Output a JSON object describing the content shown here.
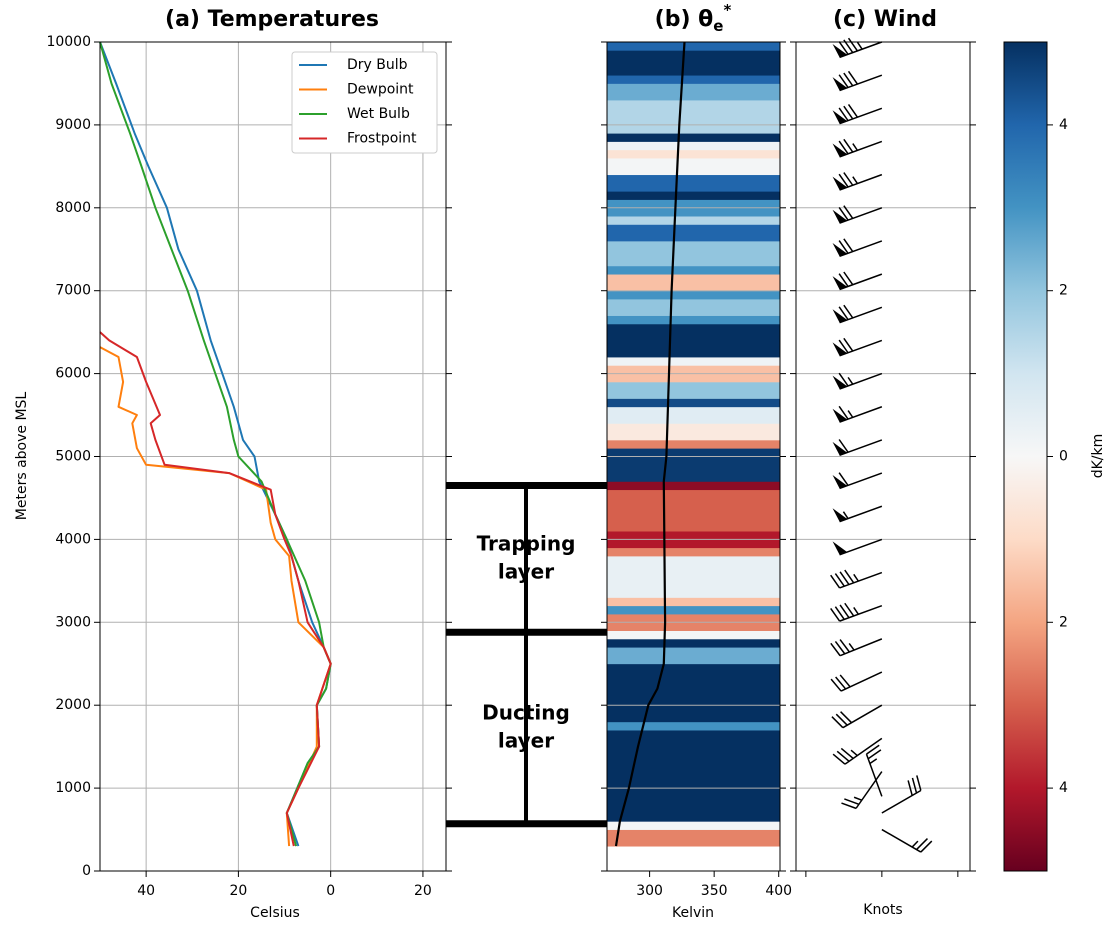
{
  "chart_data": [
    {
      "type": "line",
      "title": "(a) Temperatures",
      "xlabel": "Celsius",
      "ylabel": "Meters above MSL",
      "xlim": [
        -50,
        25
      ],
      "xticks": [
        {
          "value": -40,
          "label": "40"
        },
        {
          "value": -20,
          "label": "20"
        },
        0,
        20
      ],
      "ylim": [
        0,
        10000
      ],
      "yticks": [
        0,
        1000,
        2000,
        3000,
        4000,
        5000,
        6000,
        7000,
        8000,
        9000,
        10000
      ],
      "grid": true,
      "legend": "upper right",
      "series": [
        {
          "name": "Dry Bulb",
          "color": "#1f77b4",
          "x": [
            -7,
            -9.5,
            -8,
            -5,
            -2.5,
            -3,
            -1,
            0,
            -1.5,
            -4,
            -7,
            -9.5,
            -12,
            -15.5,
            -16.5,
            -19,
            -21,
            -23.5,
            -26,
            -29,
            -33,
            -35.5,
            -39.5,
            -42.5,
            -46.5,
            -50
          ],
          "y": [
            300,
            700,
            900,
            1300,
            1500,
            2000,
            2200,
            2500,
            2700,
            3000,
            3500,
            4000,
            4300,
            4700,
            5000,
            5200,
            5600,
            6000,
            6400,
            7000,
            7500,
            8000,
            8500,
            8900,
            9500,
            10000
          ]
        },
        {
          "name": "Dewpoint",
          "color": "#ff7f0e",
          "x": [
            -9,
            -9.5,
            -7,
            -3,
            -3,
            0,
            -1.5,
            -7,
            -8.5,
            -9,
            -12,
            -13,
            -14,
            -22,
            -40,
            -42,
            -43,
            -42,
            -46,
            -45,
            -46,
            -50
          ],
          "y": [
            300,
            700,
            1000,
            1500,
            2000,
            2500,
            2700,
            3000,
            3500,
            3800,
            4000,
            4200,
            4600,
            4800,
            4900,
            5100,
            5400,
            5500,
            5600,
            5900,
            6200,
            6320
          ]
        },
        {
          "name": "Wet Bulb",
          "color": "#2ca02c",
          "x": [
            -7.5,
            -9.5,
            -8,
            -5,
            -2.5,
            -3,
            -1,
            0,
            -1.5,
            -2.5,
            -5.5,
            -9.5,
            -12,
            -15,
            -20,
            -21,
            -22.5,
            -25,
            -27.5,
            -31,
            -34.5,
            -38,
            -41,
            -43.5,
            -47.5,
            -50
          ],
          "y": [
            300,
            700,
            900,
            1300,
            1500,
            2000,
            2200,
            2500,
            2700,
            3000,
            3500,
            4000,
            4300,
            4700,
            5000,
            5200,
            5600,
            6000,
            6400,
            7000,
            7500,
            8000,
            8500,
            8900,
            9500,
            10000
          ]
        },
        {
          "name": "Frostpoint",
          "color": "#d62728",
          "x": [
            -8,
            -9.5,
            -7,
            -2.5,
            -3,
            0,
            -1.5,
            -5,
            -7,
            -8.5,
            -10,
            -12,
            -13,
            -22,
            -36,
            -38,
            -39,
            -37,
            -40,
            -42,
            -48,
            -50
          ],
          "y": [
            300,
            700,
            1000,
            1500,
            2000,
            2500,
            2700,
            3000,
            3500,
            3800,
            4000,
            4300,
            4600,
            4800,
            4900,
            5200,
            5400,
            5500,
            5900,
            6200,
            6400,
            6500
          ]
        }
      ]
    },
    {
      "type": "heatmap",
      "title": {
        "text": "(b) θ",
        "sub": "e",
        "sup": "*"
      },
      "xlabel": "Kelvin",
      "xlim": [
        267,
        401
      ],
      "xticks": [
        300,
        350,
        400
      ],
      "ylim": [
        0,
        10000
      ],
      "y_edges": [
        300,
        500,
        600,
        1700,
        1800,
        2500,
        2700,
        2800,
        2900,
        3100,
        3200,
        3300,
        3800,
        3900,
        4100,
        4600,
        4700,
        5100,
        5200,
        5400,
        5600,
        5700,
        5900,
        6100,
        6200,
        6600,
        6700,
        6900,
        7000,
        7200,
        7300,
        7600,
        7800,
        7900,
        8100,
        8200,
        8400,
        8600,
        8700,
        8800,
        8900,
        9300,
        9500,
        9600,
        9900,
        10000
      ],
      "values": [
        -2.5,
        0.1,
        5,
        3,
        5,
        2.5,
        5,
        0.1,
        -2.5,
        3,
        -1.5,
        0.4,
        -2.5,
        -4,
        -3,
        -4.5,
        4.8,
        -2.5,
        -0.5,
        0.6,
        4.5,
        2,
        -1.5,
        0.2,
        5,
        3,
        2,
        3,
        -1.5,
        3,
        2,
        4,
        1.5,
        3,
        5,
        4,
        0.1,
        -0.7,
        0.2,
        5,
        1.5,
        2.5,
        4,
        5,
        4
      ],
      "colormap": "RdBu",
      "clim": [
        -5,
        5
      ],
      "cticks": [
        {
          "value": -4,
          "label": "4"
        },
        {
          "value": -2,
          "label": "2"
        },
        0,
        2,
        4
      ],
      "clabel": "dK/km",
      "line": {
        "color": "#000000",
        "x": [
          274,
          277,
          284,
          291,
          299,
          306,
          311,
          312,
          311,
          313,
          315,
          317,
          320,
          323,
          327
        ],
        "y": [
          300,
          600,
          1000,
          1500,
          2000,
          2200,
          2500,
          3000,
          4700,
          5000,
          6000,
          7000,
          8000,
          9000,
          10000
        ]
      },
      "layer_boundaries": [
        570,
        2880,
        4650
      ],
      "layers": [
        {
          "label": [
            "Trapping",
            "layer"
          ]
        },
        {
          "label": [
            "Ducting",
            "layer"
          ]
        }
      ]
    },
    {
      "type": "barbs",
      "title": "(c) Wind",
      "xlabel": "Knots",
      "xlim": [
        -113,
        116
      ],
      "xticks": [
        -100,
        0,
        100
      ],
      "ylim": [
        0,
        10000
      ],
      "heights": [
        10000,
        9600,
        9200,
        8800,
        8400,
        8000,
        7600,
        7200,
        6800,
        6400,
        6000,
        5600,
        5200,
        4800,
        4400,
        4000,
        3600,
        3200,
        2800,
        2400,
        2000,
        1600,
        1200,
        900,
        700,
        500
      ],
      "speed": [
        85,
        80,
        80,
        75,
        75,
        70,
        70,
        70,
        70,
        70,
        65,
        65,
        60,
        60,
        55,
        50,
        45,
        45,
        35,
        30,
        30,
        35,
        25,
        25,
        30,
        25
      ],
      "direction": [
        250,
        250,
        250,
        250,
        250,
        250,
        250,
        250,
        250,
        250,
        250,
        250,
        250,
        250,
        250,
        250,
        250,
        250,
        248,
        245,
        240,
        235,
        215,
        340,
        60,
        120
      ]
    }
  ]
}
